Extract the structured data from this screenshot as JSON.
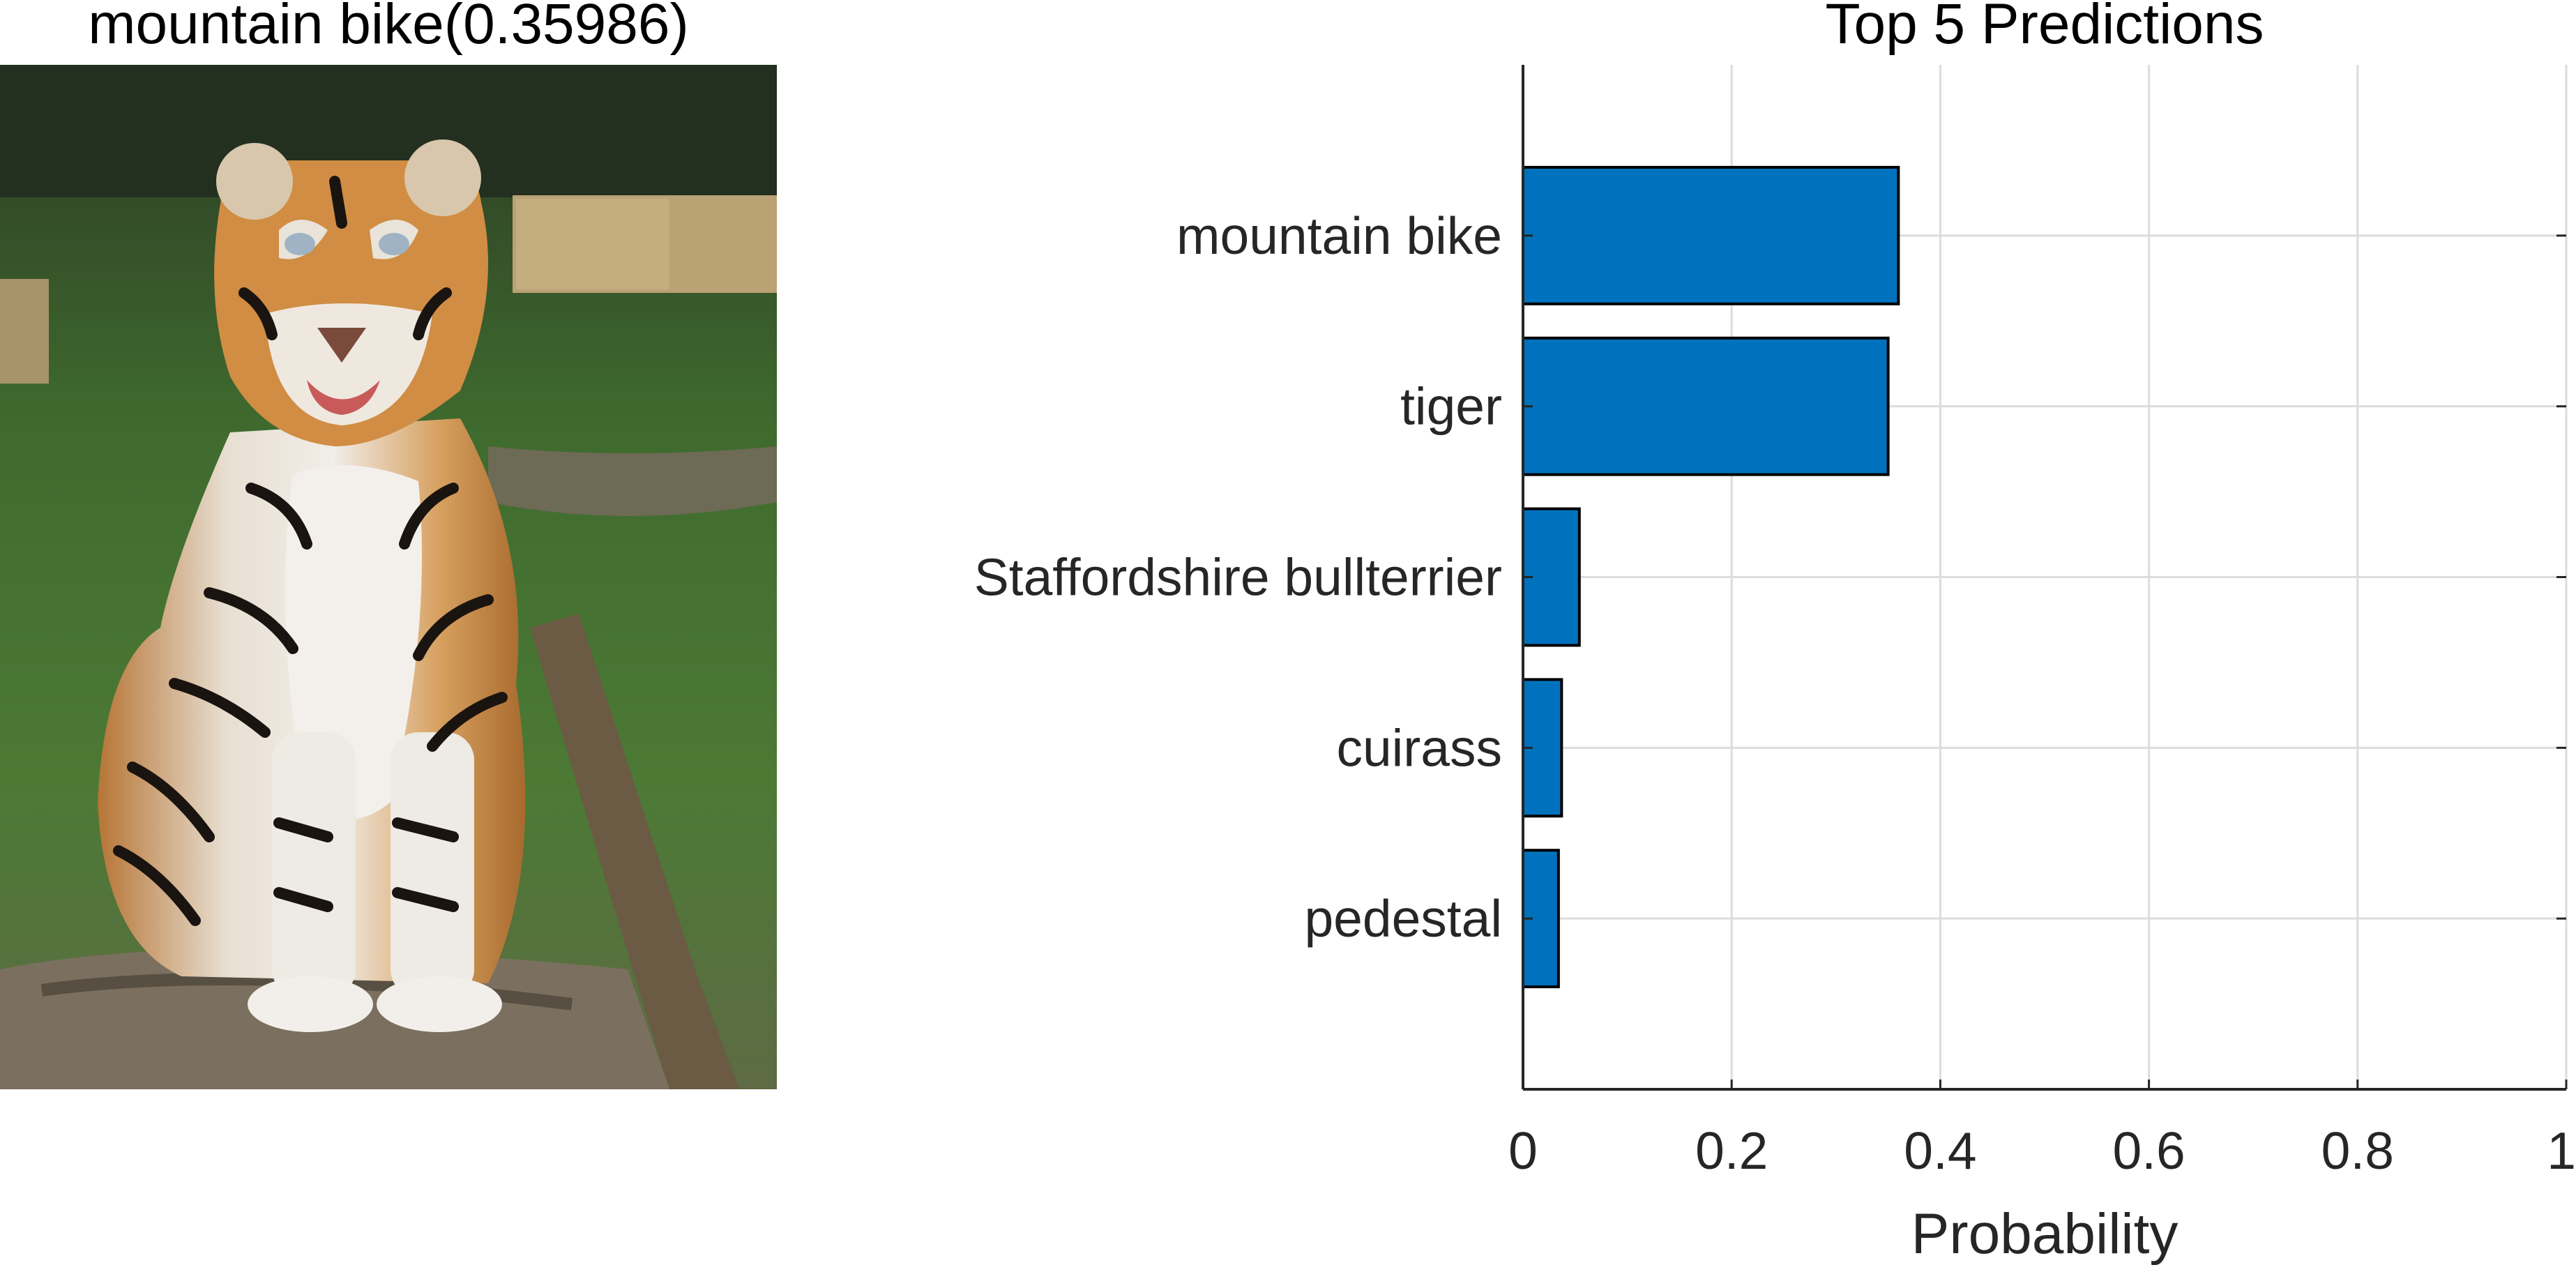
{
  "image_panel": {
    "title": "mountain bike(0.35986)",
    "image_subject": "tiger",
    "colors": {
      "grass": "#4e7a34",
      "fur": "#c8843c",
      "stripe": "#1a1410",
      "white": "#eeeae4",
      "rock": "#7b705f"
    }
  },
  "chart_data": {
    "type": "bar",
    "orientation": "horizontal",
    "title": "Top 5 Predictions",
    "xlabel": "Probability",
    "ylabel": "",
    "categories": [
      "mountain bike",
      "tiger",
      "Staffordshire bullterrier",
      "cuirass",
      "pedestal"
    ],
    "values": [
      0.35986,
      0.35,
      0.054,
      0.037,
      0.034
    ],
    "xlim": [
      0,
      1
    ],
    "xticks": [
      0,
      0.2,
      0.4,
      0.6,
      0.8,
      1
    ],
    "xtick_labels": [
      "0",
      "0.2",
      "0.4",
      "0.6",
      "0.8",
      "1"
    ],
    "ylim": [
      0,
      6
    ],
    "grid": true,
    "bar_color": "#0072bd",
    "bar_edge_color": "#000000",
    "grid_color": "#dcdcdc",
    "axis_color": "#262626"
  }
}
